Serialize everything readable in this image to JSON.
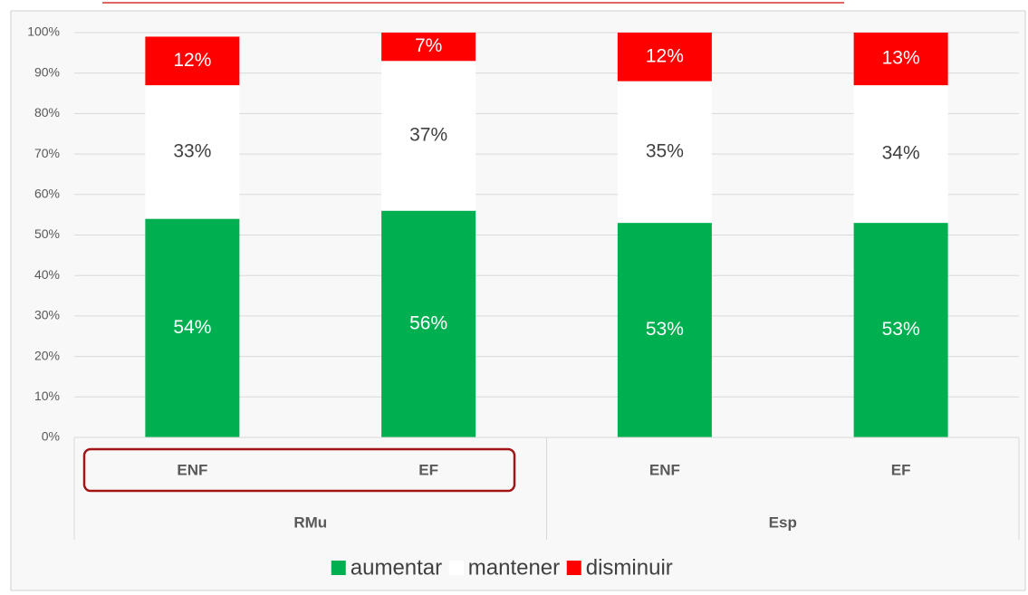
{
  "chart_data": {
    "type": "stacked_bar",
    "categories": [
      "ENF",
      "EF",
      "ENF",
      "EF"
    ],
    "groups": [
      "RMu",
      "Esp"
    ],
    "series": [
      {
        "name": "aumentar",
        "color": "#00b050",
        "values": [
          54,
          56,
          53,
          53
        ],
        "value_labels": [
          "54%",
          "56%",
          "53%",
          "53%"
        ]
      },
      {
        "name": "mantener",
        "color": "#ffffff",
        "values": [
          33,
          37,
          35,
          34
        ],
        "value_labels": [
          "33%",
          "37%",
          "35%",
          "34%"
        ]
      },
      {
        "name": "disminuir",
        "color": "#ff0000",
        "values": [
          12,
          7,
          12,
          13
        ],
        "value_labels": [
          "12%",
          "7%",
          "12%",
          "13%"
        ]
      }
    ],
    "ylim": [
      0,
      100
    ],
    "yticks": [
      {
        "value": 0,
        "label": "0%"
      },
      {
        "value": 10,
        "label": "10%"
      },
      {
        "value": 20,
        "label": "20%"
      },
      {
        "value": 30,
        "label": "30%"
      },
      {
        "value": 40,
        "label": "40%"
      },
      {
        "value": 50,
        "label": "50%"
      },
      {
        "value": 60,
        "label": "60%"
      },
      {
        "value": 70,
        "label": "70%"
      },
      {
        "value": 80,
        "label": "80%"
      },
      {
        "value": 90,
        "label": "90%"
      },
      {
        "value": 100,
        "label": "100%"
      }
    ],
    "grid": true,
    "legend": "bottom"
  }
}
